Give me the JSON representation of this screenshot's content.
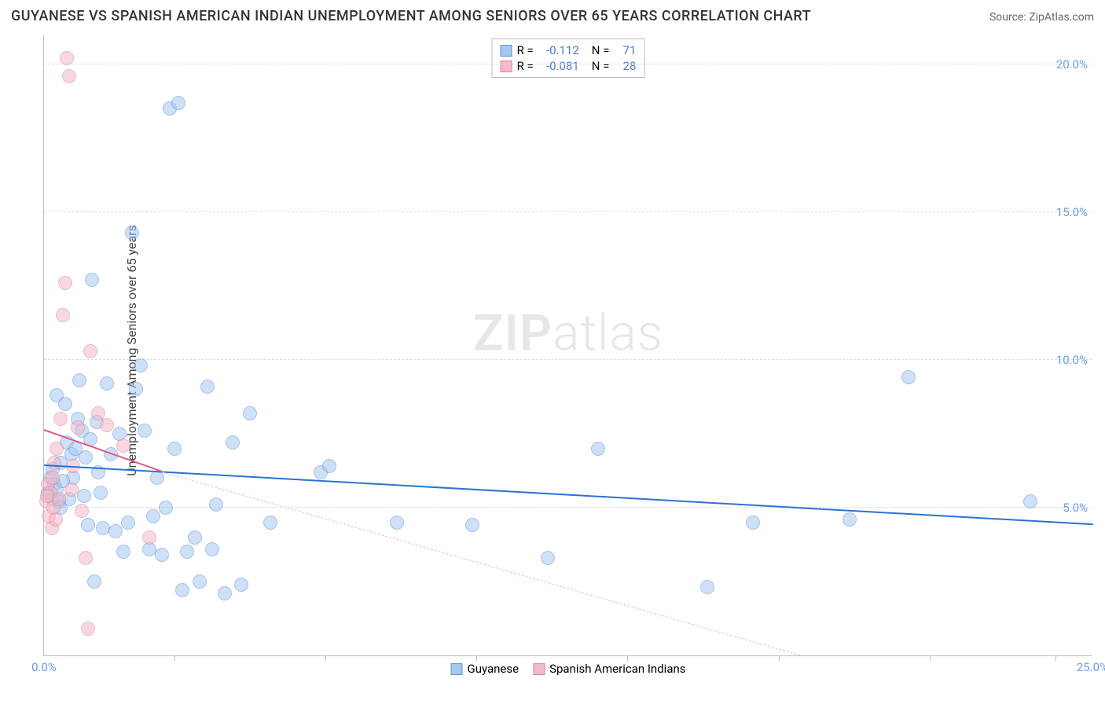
{
  "title": "GUYANESE VS SPANISH AMERICAN INDIAN UNEMPLOYMENT AMONG SENIORS OVER 65 YEARS CORRELATION CHART",
  "source": "Source: ZipAtlas.com",
  "y_axis_label": "Unemployment Among Seniors over 65 years",
  "watermark_a": "ZIP",
  "watermark_b": "atlas",
  "chart": {
    "type": "scatter",
    "xlim": [
      0,
      25
    ],
    "ylim": [
      0,
      21
    ],
    "x_tick_left": "0.0%",
    "x_tick_right": "25.0%",
    "y_ticks": [
      {
        "v": 5,
        "label": "5.0%"
      },
      {
        "v": 10,
        "label": "10.0%"
      },
      {
        "v": 15,
        "label": "15.0%"
      },
      {
        "v": 20,
        "label": "20.0%"
      }
    ],
    "x_tick_positions": [
      3.1,
      6.7,
      10.3,
      13.9,
      17.5,
      21.1,
      24.1
    ],
    "background_color": "#ffffff",
    "grid_color": "#dddddd",
    "axis_color": "#bbbbbb",
    "tick_label_color": "#6b9be8",
    "title_color": "#333333",
    "title_fontsize": 18,
    "label_fontsize": 16,
    "tick_fontsize": 15,
    "marker_radius": 9,
    "marker_opacity": 0.55,
    "series": [
      {
        "name": "Guyanese",
        "fill": "#a7c7f0",
        "stroke": "#5e93d8",
        "r": -0.112,
        "n": 71,
        "trend": {
          "x1": 0,
          "y1": 6.4,
          "x2": 25,
          "y2": 4.4,
          "width": 2.2,
          "dash": false,
          "color": "#2a72d4"
        },
        "points": [
          [
            0.1,
            5.5
          ],
          [
            0.15,
            6.0
          ],
          [
            0.2,
            5.3
          ],
          [
            0.2,
            6.3
          ],
          [
            0.25,
            5.8
          ],
          [
            0.3,
            5.6
          ],
          [
            0.3,
            8.8
          ],
          [
            0.35,
            5.2
          ],
          [
            0.4,
            6.5
          ],
          [
            0.4,
            5.0
          ],
          [
            0.5,
            8.5
          ],
          [
            0.55,
            7.2
          ],
          [
            0.6,
            5.3
          ],
          [
            0.65,
            6.8
          ],
          [
            0.7,
            6.0
          ],
          [
            0.75,
            7.0
          ],
          [
            0.8,
            8.0
          ],
          [
            0.85,
            9.3
          ],
          [
            0.9,
            7.6
          ],
          [
            0.95,
            5.4
          ],
          [
            1.0,
            6.7
          ],
          [
            1.05,
            4.4
          ],
          [
            1.1,
            7.3
          ],
          [
            1.15,
            12.7
          ],
          [
            1.2,
            2.5
          ],
          [
            1.3,
            6.2
          ],
          [
            1.35,
            5.5
          ],
          [
            1.4,
            4.3
          ],
          [
            1.5,
            9.2
          ],
          [
            1.6,
            6.8
          ],
          [
            1.7,
            4.2
          ],
          [
            1.8,
            7.5
          ],
          [
            1.9,
            3.5
          ],
          [
            2.0,
            4.5
          ],
          [
            2.1,
            14.3
          ],
          [
            2.2,
            9.0
          ],
          [
            2.3,
            9.8
          ],
          [
            2.4,
            7.6
          ],
          [
            2.5,
            3.6
          ],
          [
            2.6,
            4.7
          ],
          [
            2.7,
            6.0
          ],
          [
            2.8,
            3.4
          ],
          [
            2.9,
            5.0
          ],
          [
            3.0,
            18.5
          ],
          [
            3.1,
            7.0
          ],
          [
            3.2,
            18.7
          ],
          [
            3.3,
            2.2
          ],
          [
            3.4,
            3.5
          ],
          [
            3.6,
            4.0
          ],
          [
            3.7,
            2.5
          ],
          [
            3.9,
            9.1
          ],
          [
            4.0,
            3.6
          ],
          [
            4.1,
            5.1
          ],
          [
            4.3,
            2.1
          ],
          [
            4.5,
            7.2
          ],
          [
            4.7,
            2.4
          ],
          [
            4.9,
            8.2
          ],
          [
            5.4,
            4.5
          ],
          [
            6.6,
            6.2
          ],
          [
            6.8,
            6.4
          ],
          [
            8.4,
            4.5
          ],
          [
            10.2,
            4.4
          ],
          [
            12.0,
            3.3
          ],
          [
            13.2,
            7.0
          ],
          [
            15.8,
            2.3
          ],
          [
            16.9,
            4.5
          ],
          [
            19.2,
            4.6
          ],
          [
            20.6,
            9.4
          ],
          [
            23.5,
            5.2
          ],
          [
            1.25,
            7.9
          ],
          [
            0.45,
            5.9
          ]
        ]
      },
      {
        "name": "Spanish American Indians",
        "fill": "#f3b9c7",
        "stroke": "#e37fa0",
        "r": -0.081,
        "n": 28,
        "trend": {
          "solid": {
            "x1": 0,
            "y1": 7.6,
            "x2": 2.8,
            "y2": 6.2,
            "width": 2.2,
            "color": "#e05a85"
          },
          "dash": {
            "x1": 2.8,
            "y1": 6.2,
            "x2": 18.0,
            "y2": 0.0,
            "width": 1,
            "color": "#f0b8c8"
          }
        },
        "points": [
          [
            0.05,
            5.2
          ],
          [
            0.1,
            5.8
          ],
          [
            0.12,
            4.7
          ],
          [
            0.15,
            5.5
          ],
          [
            0.18,
            4.3
          ],
          [
            0.2,
            6.0
          ],
          [
            0.22,
            5.0
          ],
          [
            0.25,
            6.5
          ],
          [
            0.28,
            4.6
          ],
          [
            0.3,
            7.0
          ],
          [
            0.35,
            5.3
          ],
          [
            0.4,
            8.0
          ],
          [
            0.45,
            11.5
          ],
          [
            0.5,
            12.6
          ],
          [
            0.55,
            20.2
          ],
          [
            0.6,
            19.6
          ],
          [
            0.65,
            5.6
          ],
          [
            0.7,
            6.4
          ],
          [
            0.8,
            7.7
          ],
          [
            0.9,
            4.9
          ],
          [
            1.0,
            3.3
          ],
          [
            1.1,
            10.3
          ],
          [
            1.3,
            8.2
          ],
          [
            1.5,
            7.8
          ],
          [
            1.9,
            7.1
          ],
          [
            2.5,
            4.0
          ],
          [
            0.08,
            5.4
          ],
          [
            1.05,
            0.9
          ]
        ]
      }
    ],
    "legend_top": {
      "r_label": "R =",
      "n_label": "N ="
    },
    "legend_bottom": [
      {
        "label": "Guyanese",
        "fill": "#a7c7f0",
        "stroke": "#5e93d8"
      },
      {
        "label": "Spanish American Indians",
        "fill": "#f3b9c7",
        "stroke": "#e37fa0"
      }
    ]
  }
}
